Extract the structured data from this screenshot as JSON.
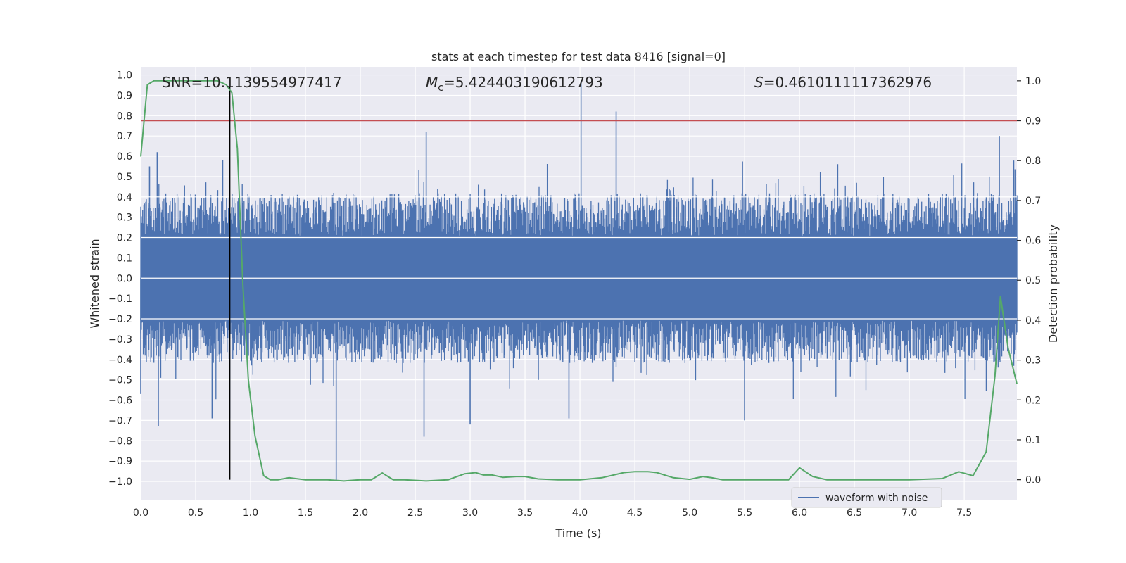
{
  "chart_data": {
    "type": "line",
    "title": "stats at each timestep for test data 8416 [signal=0]",
    "xlabel": "Time (s)",
    "ylabel_left": "Whitened strain",
    "ylabel_right": "Detection probability",
    "xlim": [
      0.0,
      7.98
    ],
    "ylim_left": [
      -1.09,
      1.04
    ],
    "ylim_right": [
      -0.05,
      1.035
    ],
    "x_ticks": [
      "0.0",
      "0.5",
      "1.0",
      "1.5",
      "2.0",
      "2.5",
      "3.0",
      "3.5",
      "4.0",
      "4.5",
      "5.0",
      "5.5",
      "6.0",
      "6.5",
      "7.0",
      "7.5"
    ],
    "y_left_ticks": [
      "1.0",
      "0.9",
      "0.8",
      "0.7",
      "0.6",
      "0.5",
      "0.4",
      "0.3",
      "0.2",
      "0.1",
      "0.0",
      "−0.1",
      "−0.2",
      "−0.3",
      "−0.4",
      "−0.5",
      "−0.6",
      "−0.7",
      "−0.8",
      "−0.9",
      "−1.0"
    ],
    "y_right_ticks": [
      "1.0",
      "0.9",
      "0.8",
      "0.7",
      "0.6",
      "0.5",
      "0.4",
      "0.3",
      "0.2",
      "0.1",
      "0.0"
    ],
    "grid": true,
    "legend_position": "lower-right",
    "colors": {
      "background": "#eaeaf2",
      "grid": "#ffffff",
      "waveform": "#4c72b0",
      "probability": "#55a868",
      "threshold": "#c44e52",
      "marker": "#000000"
    },
    "annotations": {
      "snr": "SNR=10.1139554977417",
      "mc_symbol": "M",
      "mc_sub": "c",
      "mc_value": "=5.424403190612793",
      "s_symbol": "S",
      "s_value": "=0.4610111117362976"
    },
    "series": [
      {
        "name": "waveform with noise",
        "axis": "left",
        "envelope_approx": {
          "typical_abs": 0.38,
          "max": 0.97,
          "min": -1.0
        },
        "spikes": [
          {
            "x": 0.08,
            "y": 0.55
          },
          {
            "x": 0.15,
            "y": 0.62
          },
          {
            "x": 0.0,
            "y": -0.57
          },
          {
            "x": 0.16,
            "y": -0.73
          },
          {
            "x": 0.65,
            "y": -0.69
          },
          {
            "x": 0.81,
            "y": -0.69
          },
          {
            "x": 1.78,
            "y": -1.0
          },
          {
            "x": 2.6,
            "y": 0.72
          },
          {
            "x": 2.58,
            "y": -0.78
          },
          {
            "x": 3.0,
            "y": -0.72
          },
          {
            "x": 3.9,
            "y": -0.69
          },
          {
            "x": 4.01,
            "y": 0.97
          },
          {
            "x": 4.33,
            "y": 0.82
          },
          {
            "x": 5.5,
            "y": -0.7
          },
          {
            "x": 7.82,
            "y": 0.7
          }
        ]
      },
      {
        "name": "",
        "axis": "right",
        "x": [
          0.0,
          0.06,
          0.12,
          0.3,
          0.5,
          0.7,
          0.78,
          0.83,
          0.88,
          0.93,
          0.98,
          1.04,
          1.12,
          1.18,
          1.25,
          1.35,
          1.5,
          1.7,
          1.85,
          2.0,
          2.1,
          2.2,
          2.3,
          2.4,
          2.6,
          2.8,
          2.95,
          3.05,
          3.12,
          3.2,
          3.3,
          3.42,
          3.5,
          3.62,
          3.8,
          4.0,
          4.2,
          4.4,
          4.5,
          4.62,
          4.7,
          4.85,
          5.0,
          5.12,
          5.2,
          5.3,
          5.6,
          5.9,
          6.0,
          6.12,
          6.25,
          6.4,
          6.8,
          7.0,
          7.3,
          7.45,
          7.58,
          7.7,
          7.78,
          7.83,
          7.9,
          7.98
        ],
        "y": [
          0.81,
          0.99,
          1.0,
          1.0,
          1.0,
          1.0,
          0.99,
          0.97,
          0.83,
          0.49,
          0.25,
          0.11,
          0.01,
          0.0,
          0.0,
          0.005,
          0.0,
          0.0,
          -0.003,
          0.0,
          0.0,
          0.017,
          0.0,
          0.0,
          -0.003,
          0.0,
          0.015,
          0.018,
          0.012,
          0.012,
          0.006,
          0.008,
          0.008,
          0.002,
          0.0,
          0.0,
          0.005,
          0.018,
          0.02,
          0.02,
          0.018,
          0.005,
          0.001,
          0.008,
          0.005,
          0.0,
          0.0,
          0.0,
          0.03,
          0.008,
          0.0,
          0.0,
          0.0,
          0.0,
          0.003,
          0.02,
          0.01,
          0.07,
          0.26,
          0.46,
          0.33,
          0.24
        ]
      }
    ],
    "threshold_right": 0.9,
    "marker_x": 0.81
  },
  "legend": {
    "waveform_label": "waveform with noise"
  }
}
